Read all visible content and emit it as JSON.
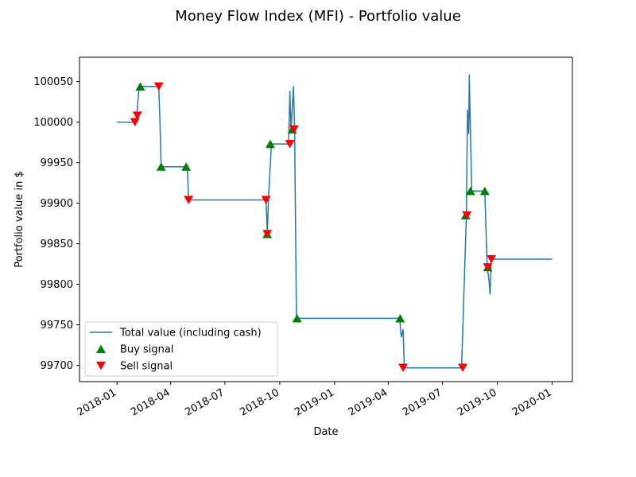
{
  "chart_data": {
    "type": "line",
    "title": "Money Flow Index (MFI) - Portfolio value",
    "xlabel": "Date",
    "ylabel": "Portfolio value in $",
    "xlim": [
      "2017-10-30",
      "2020-02-04"
    ],
    "ylim": [
      99680,
      100080
    ],
    "x_ticks": [
      "2018-01-01",
      "2018-04-01",
      "2018-07-01",
      "2018-10-01",
      "2019-01-01",
      "2019-04-01",
      "2019-07-01",
      "2019-10-01",
      "2020-01-01"
    ],
    "x_tick_labels": [
      "2018-01",
      "2018-04",
      "2018-07",
      "2018-10",
      "2019-01",
      "2019-04",
      "2019-07",
      "2019-10",
      "2020-01"
    ],
    "y_ticks": [
      99700,
      99750,
      99800,
      99850,
      99900,
      99950,
      100000,
      100050
    ],
    "legend_position": "lower-left",
    "grid": false,
    "colors": {
      "line": "#1f77b4",
      "buy": "#008000",
      "sell": "#ff0000"
    },
    "series": [
      {
        "name": "Total value (including cash)",
        "kind": "line",
        "points": [
          [
            "2018-01-01",
            100000
          ],
          [
            "2018-02-01",
            100000
          ],
          [
            "2018-02-03",
            100008
          ],
          [
            "2018-02-07",
            100044
          ],
          [
            "2018-03-12",
            100044
          ],
          [
            "2018-03-14",
            100000
          ],
          [
            "2018-03-16",
            99945
          ],
          [
            "2018-04-29",
            99945
          ],
          [
            "2018-05-01",
            99904
          ],
          [
            "2018-09-08",
            99904
          ],
          [
            "2018-09-10",
            99863
          ],
          [
            "2018-09-12",
            99904
          ],
          [
            "2018-09-17",
            99973
          ],
          [
            "2018-10-16",
            99973
          ],
          [
            "2018-10-18",
            100038
          ],
          [
            "2018-10-20",
            99990
          ],
          [
            "2018-10-24",
            100044
          ],
          [
            "2018-10-26",
            99990
          ],
          [
            "2018-10-29",
            99758
          ],
          [
            "2019-04-20",
            99758
          ],
          [
            "2019-04-23",
            99735
          ],
          [
            "2019-04-26",
            99744
          ],
          [
            "2019-04-28",
            99697
          ],
          [
            "2019-08-02",
            99697
          ],
          [
            "2019-08-10",
            99884
          ],
          [
            "2019-08-12",
            100015
          ],
          [
            "2019-08-14",
            99986
          ],
          [
            "2019-08-15",
            100058
          ],
          [
            "2019-08-19",
            99915
          ],
          [
            "2019-09-10",
            99915
          ],
          [
            "2019-09-14",
            99822
          ],
          [
            "2019-09-17",
            99806
          ],
          [
            "2019-09-19",
            99788
          ],
          [
            "2019-09-21",
            99831
          ],
          [
            "2020-01-01",
            99831
          ]
        ]
      },
      {
        "name": "Buy signal",
        "kind": "marker-up",
        "points": [
          [
            "2018-02-09",
            100044
          ],
          [
            "2018-03-16",
            99945
          ],
          [
            "2018-04-27",
            99945
          ],
          [
            "2018-09-10",
            99862
          ],
          [
            "2018-09-15",
            99973
          ],
          [
            "2018-10-22",
            99991
          ],
          [
            "2018-10-30",
            99758
          ],
          [
            "2019-04-21",
            99758
          ],
          [
            "2019-08-09",
            99885
          ],
          [
            "2019-08-17",
            99915
          ],
          [
            "2019-09-10",
            99915
          ],
          [
            "2019-09-15",
            99821
          ]
        ]
      },
      {
        "name": "Sell signal",
        "kind": "marker-down",
        "points": [
          [
            "2018-01-31",
            100000
          ],
          [
            "2018-02-04",
            100008
          ],
          [
            "2018-03-12",
            100044
          ],
          [
            "2018-05-01",
            99904
          ],
          [
            "2018-09-08",
            99904
          ],
          [
            "2018-09-10",
            99862
          ],
          [
            "2018-10-18",
            99973
          ],
          [
            "2018-10-25",
            99991
          ],
          [
            "2019-04-26",
            99697
          ],
          [
            "2019-08-04",
            99697
          ],
          [
            "2019-08-11",
            99885
          ],
          [
            "2019-09-15",
            99821
          ],
          [
            "2019-09-21",
            99831
          ]
        ]
      }
    ]
  }
}
